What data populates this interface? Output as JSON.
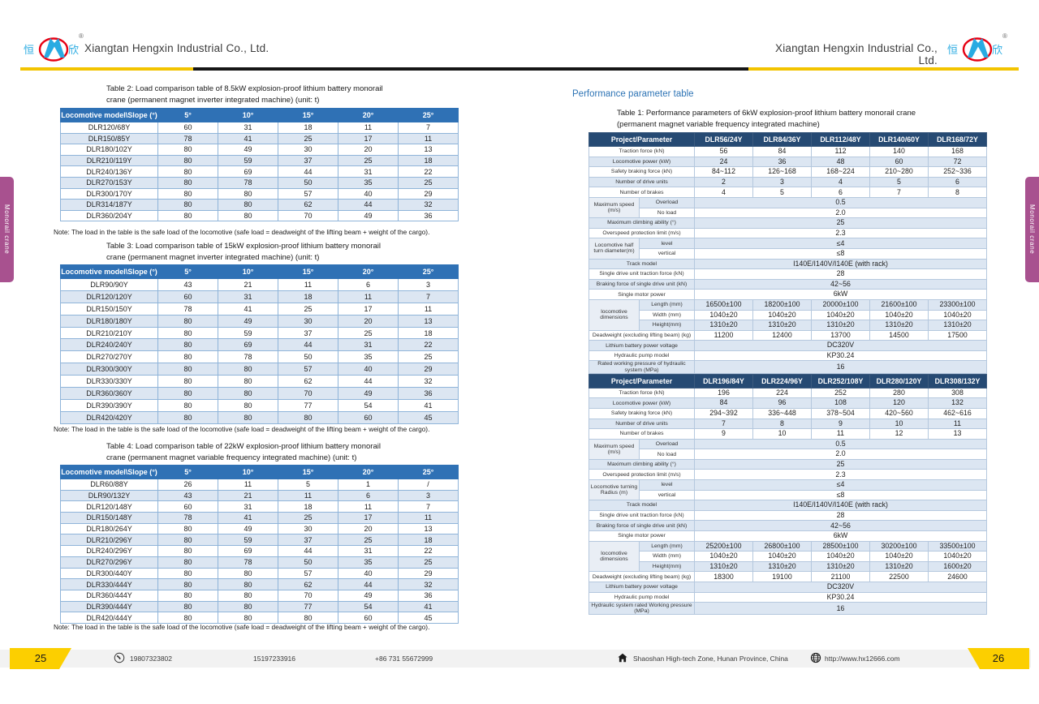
{
  "colors": {
    "table_header_blue": "#2f71b5",
    "perf_header_navy": "#264a73",
    "row_stripe": "#dce6f2",
    "accent_yellow": "#fccf00",
    "side_tab_magenta": "#a8518f",
    "logo_blue": "#29abe2",
    "logo_red": "#e60012"
  },
  "logo": {
    "left_char": "恒",
    "right_char": "欣",
    "registered": "®"
  },
  "page_left": {
    "company": "Xiangtan Hengxin Industrial Co., Ltd.",
    "side_tab": "Monorail crane",
    "page_number": "25",
    "footer": {
      "phone1": "19807323802",
      "phone2": "15197233916",
      "phone3": "+86 731 55672999"
    },
    "tables": [
      {
        "title_line1": "Table 2: Load comparison table of 8.5kW explosion-proof lithium battery monorail",
        "title_line2": "crane (permanent magnet inverter integrated machine) (unit: t)",
        "header": [
          "Locomotive model\\Slope (°)",
          "5°",
          "10°",
          "15°",
          "20°",
          "25°"
        ],
        "rows": [
          [
            "DLR120/68Y",
            "60",
            "31",
            "18",
            "11",
            "7"
          ],
          [
            "DLR150/85Y",
            "78",
            "41",
            "25",
            "17",
            "11"
          ],
          [
            "DLR180/102Y",
            "80",
            "49",
            "30",
            "20",
            "13"
          ],
          [
            "DLR210/119Y",
            "80",
            "59",
            "37",
            "25",
            "18"
          ],
          [
            "DLR240/136Y",
            "80",
            "69",
            "44",
            "31",
            "22"
          ],
          [
            "DLR270/153Y",
            "80",
            "78",
            "50",
            "35",
            "25"
          ],
          [
            "DLR300/170Y",
            "80",
            "80",
            "57",
            "40",
            "29"
          ],
          [
            "DLR314/187Y",
            "80",
            "80",
            "62",
            "44",
            "32"
          ],
          [
            "DLR360/204Y",
            "80",
            "80",
            "70",
            "49",
            "36"
          ]
        ],
        "note": "Note: The load in the table is the safe load of the locomotive (safe load = deadweight of the lifting beam + weight of the cargo)."
      },
      {
        "title_line1": "Table 3: Load comparison table of 15kW explosion-proof lithium battery monorail",
        "title_line2": "crane (permanent magnet inverter integrated machine) (unit: t)",
        "header": [
          "Locomotive model\\Slope (°)",
          "5°",
          "10°",
          "15°",
          "20°",
          "25°"
        ],
        "rows": [
          [
            "DLR90/90Y",
            "43",
            "21",
            "11",
            "6",
            "3"
          ],
          [
            "DLR120/120Y",
            "60",
            "31",
            "18",
            "11",
            "7"
          ],
          [
            "DLR150/150Y",
            "78",
            "41",
            "25",
            "17",
            "11"
          ],
          [
            "DLR180/180Y",
            "80",
            "49",
            "30",
            "20",
            "13"
          ],
          [
            "DLR210/210Y",
            "80",
            "59",
            "37",
            "25",
            "18"
          ],
          [
            "DLR240/240Y",
            "80",
            "69",
            "44",
            "31",
            "22"
          ],
          [
            "DLR270/270Y",
            "80",
            "78",
            "50",
            "35",
            "25"
          ],
          [
            "DLR300/300Y",
            "80",
            "80",
            "57",
            "40",
            "29"
          ],
          [
            "DLR330/330Y",
            "80",
            "80",
            "62",
            "44",
            "32"
          ],
          [
            "DLR360/360Y",
            "80",
            "80",
            "70",
            "49",
            "36"
          ],
          [
            "DLR390/390Y",
            "80",
            "80",
            "77",
            "54",
            "41"
          ],
          [
            "DLR420/420Y",
            "80",
            "80",
            "80",
            "60",
            "45"
          ]
        ],
        "note": "Note: The load in the table is the safe load of the locomotive (safe load = deadweight of the lifting beam + weight of the cargo)."
      },
      {
        "title_line1": "Table 4: Load comparison table of 22kW explosion-proof lithium battery monorail",
        "title_line2": "crane (permanent magnet variable frequency integrated machine) (unit: t)",
        "header": [
          "Locomotive model\\Slope (°)",
          "5°",
          "10°",
          "15°",
          "20°",
          "25°"
        ],
        "rows": [
          [
            "DLR60/88Y",
            "26",
            "11",
            "5",
            "1",
            "/"
          ],
          [
            "DLR90/132Y",
            "43",
            "21",
            "11",
            "6",
            "3"
          ],
          [
            "DLR120/148Y",
            "60",
            "31",
            "18",
            "11",
            "7"
          ],
          [
            "DLR150/148Y",
            "78",
            "41",
            "25",
            "17",
            "11"
          ],
          [
            "DLR180/264Y",
            "80",
            "49",
            "30",
            "20",
            "13"
          ],
          [
            "DLR210/296Y",
            "80",
            "59",
            "37",
            "25",
            "18"
          ],
          [
            "DLR240/296Y",
            "80",
            "69",
            "44",
            "31",
            "22"
          ],
          [
            "DLR270/296Y",
            "80",
            "78",
            "50",
            "35",
            "25"
          ],
          [
            "DLR300/440Y",
            "80",
            "80",
            "57",
            "40",
            "29"
          ],
          [
            "DLR330/444Y",
            "80",
            "80",
            "62",
            "44",
            "32"
          ],
          [
            "DLR360/444Y",
            "80",
            "80",
            "70",
            "49",
            "36"
          ],
          [
            "DLR390/444Y",
            "80",
            "80",
            "77",
            "54",
            "41"
          ],
          [
            "DLR420/444Y",
            "80",
            "80",
            "80",
            "60",
            "45"
          ]
        ],
        "note": "Note: The load in the table is the safe load of the locomotive (safe load = deadweight of the lifting beam + weight of the cargo)."
      }
    ]
  },
  "page_right": {
    "company": "Xiangtan Hengxin Industrial Co., Ltd.",
    "side_tab": "Monorail crane",
    "page_number": "26",
    "section_heading": "Performance parameter table",
    "footer": {
      "address": "Shaoshan High-tech Zone, Hunan Province, China",
      "website": "http://www.hx12666.com"
    },
    "table1": {
      "title_line1": "Table 1: Performance parameters of 6kW explosion-proof lithium battery monorail crane",
      "title_line2": "(permanent magnet variable frequency integrated machine)",
      "blocks": [
        {
          "corner": "Project/Parameter",
          "columns": [
            "DLR56/24Y",
            "DLR84/36Y",
            "DLR112/48Y",
            "DLR140/60Y",
            "DLR168/72Y"
          ],
          "rows": [
            {
              "label": "Traction force (kN)",
              "values": [
                "56",
                "84",
                "112",
                "140",
                "168"
              ]
            },
            {
              "label": "Locomotive power (kW)",
              "values": [
                "24",
                "36",
                "48",
                "60",
                "72"
              ]
            },
            {
              "label": "Safety braking force (kN)",
              "values": [
                "84~112",
                "126~168",
                "168~224",
                "210~280",
                "252~336"
              ]
            },
            {
              "label": "Number of drive units",
              "values": [
                "2",
                "3",
                "4",
                "5",
                "6"
              ]
            },
            {
              "label": "Number of brakes",
              "values": [
                "4",
                "5",
                "6",
                "7",
                "8"
              ]
            },
            {
              "label": "Maximum speed (m/s)",
              "subs": [
                {
                  "sub": "Overload",
                  "span": "0.5"
                },
                {
                  "sub": "No load",
                  "span": "2.0"
                }
              ]
            },
            {
              "label": "Maximum climbing ability (°)",
              "span": "25"
            },
            {
              "label": "Overspeed protection limit (m/s)",
              "span": "2.3"
            },
            {
              "label": "Locomotive half turn diameter(m)",
              "subs": [
                {
                  "sub": "level",
                  "span": "≤4"
                },
                {
                  "sub": "vertical",
                  "span": "≤8"
                }
              ]
            },
            {
              "label": "Track model",
              "span": "I140E/I140V/I140E (with rack)"
            },
            {
              "label": "Single drive unit traction force (kN)",
              "span": "28"
            },
            {
              "label": "Braking force of single drive unit (kN)",
              "span": "42~56"
            },
            {
              "label": "Single motor power",
              "span": "6kW"
            },
            {
              "label": "locomotive dimensions",
              "subs": [
                {
                  "sub": "Length (mm)",
                  "values": [
                    "16500±100",
                    "18200±100",
                    "20000±100",
                    "21600±100",
                    "23300±100"
                  ]
                },
                {
                  "sub": "Width (mm)",
                  "values": [
                    "1040±20",
                    "1040±20",
                    "1040±20",
                    "1040±20",
                    "1040±20"
                  ]
                },
                {
                  "sub": "Height(mm)",
                  "values": [
                    "1310±20",
                    "1310±20",
                    "1310±20",
                    "1310±20",
                    "1310±20"
                  ]
                }
              ]
            },
            {
              "label": "Deadweight (excluding lifting beam) (kg)",
              "values": [
                "11200",
                "12400",
                "13700",
                "14500",
                "17500"
              ]
            },
            {
              "label": "Lithium battery power voltage",
              "span": "DC320V"
            },
            {
              "label": "Hydraulic pump model",
              "span": "KP30.24"
            },
            {
              "label": "Rated working pressure of hydraulic system (MPa)",
              "span": "16"
            }
          ]
        },
        {
          "corner": "Project/Parameter",
          "columns": [
            "DLR196/84Y",
            "DLR224/96Y",
            "DLR252/108Y",
            "DLR280/120Y",
            "DLR308/132Y"
          ],
          "rows": [
            {
              "label": "Traction force (kN)",
              "values": [
                "196",
                "224",
                "252",
                "280",
                "308"
              ]
            },
            {
              "label": "Locomotive power (kW)",
              "values": [
                "84",
                "96",
                "108",
                "120",
                "132"
              ]
            },
            {
              "label": "Safety braking force (kN)",
              "values": [
                "294~392",
                "336~448",
                "378~504",
                "420~560",
                "462~616"
              ]
            },
            {
              "label": "Number of drive units",
              "values": [
                "7",
                "8",
                "9",
                "10",
                "11"
              ]
            },
            {
              "label": "Number of brakes",
              "values": [
                "9",
                "10",
                "11",
                "12",
                "13"
              ]
            },
            {
              "label": "Maximum speed (m/s)",
              "subs": [
                {
                  "sub": "Overload",
                  "span": "0.5"
                },
                {
                  "sub": "No load",
                  "span": "2.0"
                }
              ]
            },
            {
              "label": "Maximum climbing ability (°)",
              "span": "25"
            },
            {
              "label": "Overspeed protection limit (m/s)",
              "span": "2.3"
            },
            {
              "label": "Locomotive turning Radius (m)",
              "subs": [
                {
                  "sub": "level",
                  "span": "≤4"
                },
                {
                  "sub": "vertical",
                  "span": "≤8"
                }
              ]
            },
            {
              "label": "Track model",
              "span": "I140E/I140V/I140E (with rack)"
            },
            {
              "label": "Single drive unit traction force (kN)",
              "span": "28"
            },
            {
              "label": "Braking force of single drive unit (kN)",
              "span": "42~56"
            },
            {
              "label": "Single motor power",
              "span": "6kW"
            },
            {
              "label": "locomotive dimensions",
              "subs": [
                {
                  "sub": "Length (mm)",
                  "values": [
                    "25200±100",
                    "26800±100",
                    "28500±100",
                    "30200±100",
                    "33500±100"
                  ]
                },
                {
                  "sub": "Width (mm)",
                  "values": [
                    "1040±20",
                    "1040±20",
                    "1040±20",
                    "1040±20",
                    "1040±20"
                  ]
                },
                {
                  "sub": "Height(mm)",
                  "values": [
                    "1310±20",
                    "1310±20",
                    "1310±20",
                    "1310±20",
                    "1600±20"
                  ]
                }
              ]
            },
            {
              "label": "Deadweight (excluding lifting beam) (kg)",
              "values": [
                "18300",
                "19100",
                "21100",
                "22500",
                "24600"
              ]
            },
            {
              "label": "Lithium battery power voltage",
              "span": "DC320V"
            },
            {
              "label": "Hydraulic pump model",
              "span": "KP30.24"
            },
            {
              "label": "Hydraulic system rated Working pressure (MPa)",
              "span": "16"
            }
          ]
        }
      ]
    }
  }
}
